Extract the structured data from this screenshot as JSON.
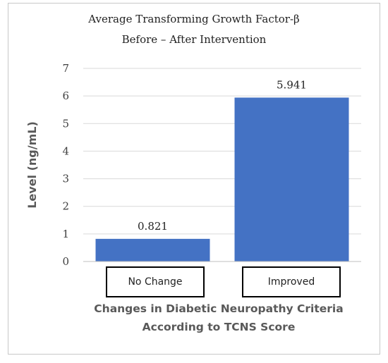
{
  "chart_data": {
    "type": "bar",
    "title_line1": "Average Transforming Growth Factor-β",
    "title_line2": "Before – After Intervention",
    "ylabel": "Level (ng/mL)",
    "xlabel_line1": "Changes in Diabetic Neuropathy Criteria",
    "xlabel_line2": "According to TCNS Score",
    "categories": [
      "No Change",
      "Improved"
    ],
    "values": [
      0.821,
      5.941
    ],
    "data_labels": [
      "0.821",
      "5.941"
    ],
    "ylim": [
      0,
      7
    ],
    "yticks": [
      "0",
      "1",
      "2",
      "3",
      "4",
      "5",
      "6",
      "7"
    ],
    "bar_color": "#4472c4",
    "grid": true,
    "legend": "none"
  }
}
